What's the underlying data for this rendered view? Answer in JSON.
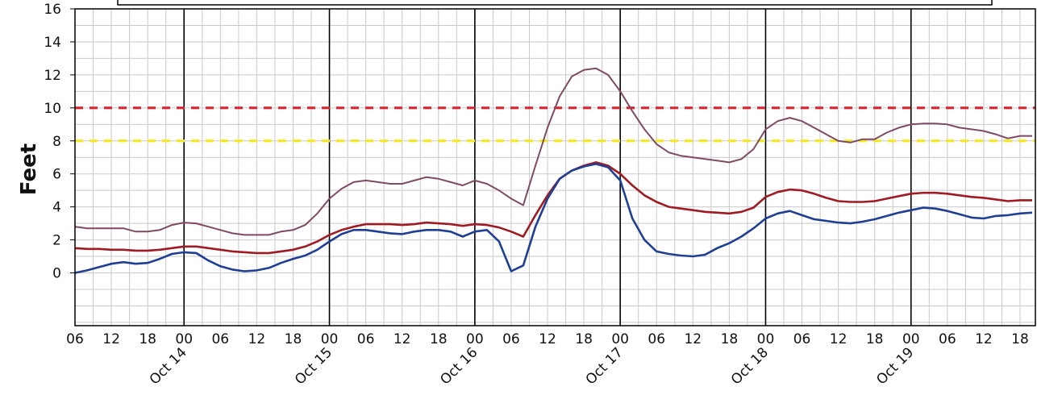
{
  "chart_data": {
    "type": "line",
    "title": "",
    "ylabel": "Feet",
    "xlabel": "",
    "ylim": [
      -3.2,
      16
    ],
    "xlim_hours": [
      6,
      162
    ],
    "y_ticks": [
      0,
      2,
      4,
      6,
      8,
      10,
      12,
      14,
      16
    ],
    "x_hour_ticks": [
      {
        "h": 6,
        "label": "06"
      },
      {
        "h": 12,
        "label": "12"
      },
      {
        "h": 18,
        "label": "18"
      },
      {
        "h": 24,
        "label": "00"
      },
      {
        "h": 30,
        "label": "06"
      },
      {
        "h": 36,
        "label": "12"
      },
      {
        "h": 42,
        "label": "18"
      },
      {
        "h": 48,
        "label": "00"
      },
      {
        "h": 54,
        "label": "06"
      },
      {
        "h": 60,
        "label": "12"
      },
      {
        "h": 66,
        "label": "18"
      },
      {
        "h": 72,
        "label": "00"
      },
      {
        "h": 78,
        "label": "06"
      },
      {
        "h": 84,
        "label": "12"
      },
      {
        "h": 90,
        "label": "18"
      },
      {
        "h": 96,
        "label": "00"
      },
      {
        "h": 102,
        "label": "06"
      },
      {
        "h": 108,
        "label": "12"
      },
      {
        "h": 114,
        "label": "18"
      },
      {
        "h": 120,
        "label": "00"
      },
      {
        "h": 126,
        "label": "06"
      },
      {
        "h": 132,
        "label": "12"
      },
      {
        "h": 138,
        "label": "18"
      },
      {
        "h": 144,
        "label": "00"
      },
      {
        "h": 150,
        "label": "06"
      },
      {
        "h": 156,
        "label": "12"
      },
      {
        "h": 162,
        "label": "18"
      }
    ],
    "day_labels": [
      {
        "h": 24,
        "label": "Oct 14"
      },
      {
        "h": 48,
        "label": "Oct 15"
      },
      {
        "h": 72,
        "label": "Oct 16"
      },
      {
        "h": 96,
        "label": "Oct 17"
      },
      {
        "h": 120,
        "label": "Oct 18"
      },
      {
        "h": 144,
        "label": "Oct 19"
      }
    ],
    "grid": true,
    "thresholds": [
      {
        "value": 10,
        "color": "#d9232e",
        "style": "dashed"
      },
      {
        "value": 8,
        "color": "#f2ea1e",
        "style": "dashed"
      }
    ],
    "series": [
      {
        "color": "#7f4a63",
        "points": [
          [
            6,
            2.8
          ],
          [
            8,
            2.7
          ],
          [
            10,
            2.7
          ],
          [
            12,
            2.7
          ],
          [
            14,
            2.7
          ],
          [
            16,
            2.5
          ],
          [
            18,
            2.5
          ],
          [
            20,
            2.6
          ],
          [
            22,
            2.9
          ],
          [
            24,
            3.05
          ],
          [
            26,
            3.0
          ],
          [
            28,
            2.8
          ],
          [
            30,
            2.6
          ],
          [
            32,
            2.4
          ],
          [
            34,
            2.3
          ],
          [
            36,
            2.3
          ],
          [
            38,
            2.3
          ],
          [
            40,
            2.5
          ],
          [
            42,
            2.6
          ],
          [
            44,
            2.9
          ],
          [
            46,
            3.6
          ],
          [
            48,
            4.5
          ],
          [
            50,
            5.1
          ],
          [
            52,
            5.5
          ],
          [
            54,
            5.6
          ],
          [
            56,
            5.5
          ],
          [
            58,
            5.4
          ],
          [
            60,
            5.4
          ],
          [
            62,
            5.6
          ],
          [
            64,
            5.8
          ],
          [
            66,
            5.7
          ],
          [
            68,
            5.5
          ],
          [
            70,
            5.3
          ],
          [
            72,
            5.6
          ],
          [
            74,
            5.4
          ],
          [
            76,
            5.0
          ],
          [
            78,
            4.5
          ],
          [
            80,
            4.1
          ],
          [
            82,
            6.5
          ],
          [
            84,
            8.8
          ],
          [
            86,
            10.7
          ],
          [
            88,
            11.9
          ],
          [
            90,
            12.3
          ],
          [
            92,
            12.4
          ],
          [
            94,
            12.0
          ],
          [
            96,
            11.0
          ],
          [
            98,
            9.8
          ],
          [
            100,
            8.7
          ],
          [
            102,
            7.8
          ],
          [
            104,
            7.3
          ],
          [
            106,
            7.1
          ],
          [
            108,
            7.0
          ],
          [
            110,
            6.9
          ],
          [
            112,
            6.8
          ],
          [
            114,
            6.7
          ],
          [
            116,
            6.9
          ],
          [
            118,
            7.5
          ],
          [
            120,
            8.7
          ],
          [
            122,
            9.2
          ],
          [
            124,
            9.4
          ],
          [
            126,
            9.2
          ],
          [
            128,
            8.8
          ],
          [
            130,
            8.4
          ],
          [
            132,
            8.0
          ],
          [
            134,
            7.9
          ],
          [
            136,
            8.1
          ],
          [
            138,
            8.1
          ],
          [
            140,
            8.5
          ],
          [
            142,
            8.8
          ],
          [
            144,
            9.0
          ],
          [
            146,
            9.05
          ],
          [
            148,
            9.05
          ],
          [
            150,
            9.0
          ],
          [
            152,
            8.8
          ],
          [
            154,
            8.7
          ],
          [
            156,
            8.6
          ],
          [
            158,
            8.4
          ],
          [
            160,
            8.15
          ],
          [
            162,
            8.3
          ],
          [
            164,
            8.3
          ]
        ]
      },
      {
        "color": "#9e1b22",
        "points": [
          [
            6,
            1.5
          ],
          [
            8,
            1.45
          ],
          [
            10,
            1.45
          ],
          [
            12,
            1.4
          ],
          [
            14,
            1.4
          ],
          [
            16,
            1.35
          ],
          [
            18,
            1.35
          ],
          [
            20,
            1.4
          ],
          [
            22,
            1.5
          ],
          [
            24,
            1.6
          ],
          [
            26,
            1.6
          ],
          [
            28,
            1.5
          ],
          [
            30,
            1.4
          ],
          [
            32,
            1.3
          ],
          [
            34,
            1.25
          ],
          [
            36,
            1.2
          ],
          [
            38,
            1.2
          ],
          [
            40,
            1.3
          ],
          [
            42,
            1.4
          ],
          [
            44,
            1.6
          ],
          [
            46,
            1.9
          ],
          [
            48,
            2.3
          ],
          [
            50,
            2.6
          ],
          [
            52,
            2.8
          ],
          [
            54,
            2.95
          ],
          [
            56,
            2.95
          ],
          [
            58,
            2.95
          ],
          [
            60,
            2.9
          ],
          [
            62,
            2.95
          ],
          [
            64,
            3.05
          ],
          [
            66,
            3.0
          ],
          [
            68,
            2.95
          ],
          [
            70,
            2.85
          ],
          [
            72,
            2.95
          ],
          [
            74,
            2.9
          ],
          [
            76,
            2.75
          ],
          [
            78,
            2.5
          ],
          [
            80,
            2.2
          ],
          [
            82,
            3.5
          ],
          [
            84,
            4.7
          ],
          [
            86,
            5.7
          ],
          [
            88,
            6.2
          ],
          [
            90,
            6.5
          ],
          [
            92,
            6.7
          ],
          [
            94,
            6.5
          ],
          [
            96,
            6.0
          ],
          [
            98,
            5.3
          ],
          [
            100,
            4.7
          ],
          [
            102,
            4.3
          ],
          [
            104,
            4.0
          ],
          [
            106,
            3.9
          ],
          [
            108,
            3.8
          ],
          [
            110,
            3.7
          ],
          [
            112,
            3.65
          ],
          [
            114,
            3.6
          ],
          [
            116,
            3.7
          ],
          [
            118,
            3.95
          ],
          [
            120,
            4.6
          ],
          [
            122,
            4.9
          ],
          [
            124,
            5.05
          ],
          [
            126,
            5.0
          ],
          [
            128,
            4.8
          ],
          [
            130,
            4.55
          ],
          [
            132,
            4.35
          ],
          [
            134,
            4.3
          ],
          [
            136,
            4.3
          ],
          [
            138,
            4.35
          ],
          [
            140,
            4.5
          ],
          [
            142,
            4.65
          ],
          [
            144,
            4.8
          ],
          [
            146,
            4.85
          ],
          [
            148,
            4.85
          ],
          [
            150,
            4.8
          ],
          [
            152,
            4.7
          ],
          [
            154,
            4.6
          ],
          [
            156,
            4.55
          ],
          [
            158,
            4.45
          ],
          [
            160,
            4.35
          ],
          [
            162,
            4.4
          ],
          [
            164,
            4.4
          ]
        ]
      },
      {
        "color": "#1f3f95",
        "points": [
          [
            6,
            0.0
          ],
          [
            8,
            0.15
          ],
          [
            10,
            0.35
          ],
          [
            12,
            0.55
          ],
          [
            14,
            0.65
          ],
          [
            16,
            0.55
          ],
          [
            18,
            0.6
          ],
          [
            20,
            0.85
          ],
          [
            22,
            1.15
          ],
          [
            24,
            1.25
          ],
          [
            26,
            1.2
          ],
          [
            28,
            0.75
          ],
          [
            30,
            0.4
          ],
          [
            32,
            0.2
          ],
          [
            34,
            0.1
          ],
          [
            36,
            0.15
          ],
          [
            38,
            0.3
          ],
          [
            40,
            0.6
          ],
          [
            42,
            0.85
          ],
          [
            44,
            1.05
          ],
          [
            46,
            1.4
          ],
          [
            48,
            1.9
          ],
          [
            50,
            2.35
          ],
          [
            52,
            2.6
          ],
          [
            54,
            2.6
          ],
          [
            56,
            2.5
          ],
          [
            58,
            2.4
          ],
          [
            60,
            2.35
          ],
          [
            62,
            2.5
          ],
          [
            64,
            2.6
          ],
          [
            66,
            2.6
          ],
          [
            68,
            2.5
          ],
          [
            70,
            2.2
          ],
          [
            72,
            2.5
          ],
          [
            74,
            2.6
          ],
          [
            76,
            1.9
          ],
          [
            78,
            0.1
          ],
          [
            80,
            0.45
          ],
          [
            82,
            2.8
          ],
          [
            84,
            4.5
          ],
          [
            86,
            5.7
          ],
          [
            88,
            6.2
          ],
          [
            90,
            6.45
          ],
          [
            92,
            6.6
          ],
          [
            94,
            6.4
          ],
          [
            96,
            5.6
          ],
          [
            98,
            3.3
          ],
          [
            100,
            2.0
          ],
          [
            102,
            1.3
          ],
          [
            104,
            1.15
          ],
          [
            106,
            1.05
          ],
          [
            108,
            1.0
          ],
          [
            110,
            1.1
          ],
          [
            112,
            1.5
          ],
          [
            114,
            1.8
          ],
          [
            116,
            2.2
          ],
          [
            118,
            2.7
          ],
          [
            120,
            3.3
          ],
          [
            122,
            3.6
          ],
          [
            124,
            3.75
          ],
          [
            126,
            3.5
          ],
          [
            128,
            3.25
          ],
          [
            130,
            3.15
          ],
          [
            132,
            3.05
          ],
          [
            134,
            3.0
          ],
          [
            136,
            3.1
          ],
          [
            138,
            3.25
          ],
          [
            140,
            3.45
          ],
          [
            142,
            3.65
          ],
          [
            144,
            3.8
          ],
          [
            146,
            3.95
          ],
          [
            148,
            3.9
          ],
          [
            150,
            3.75
          ],
          [
            152,
            3.55
          ],
          [
            154,
            3.35
          ],
          [
            156,
            3.3
          ],
          [
            158,
            3.45
          ],
          [
            160,
            3.5
          ],
          [
            162,
            3.6
          ],
          [
            164,
            3.65
          ]
        ]
      }
    ]
  }
}
